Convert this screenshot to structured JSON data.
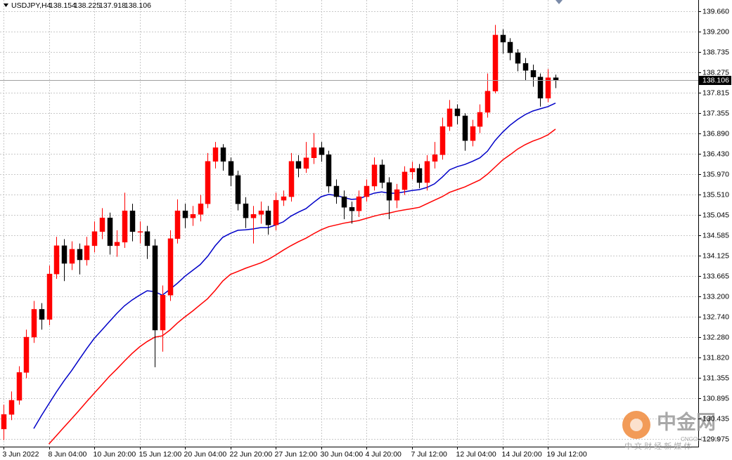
{
  "chart_data": {
    "type": "candlestick",
    "symbol": "USDJPY,H4",
    "current_price": 138.106,
    "grid": true,
    "up_color": "#ff0000",
    "down_color": "#000000",
    "ylim": [
      129.816,
      139.914
    ],
    "yticks": [
      {
        "value": 139.66,
        "label": "139.660"
      },
      {
        "value": 139.2,
        "label": "139.200"
      },
      138.735,
      138.275,
      137.815,
      137.355,
      {
        "value": 136.89,
        "label": "136.890"
      },
      {
        "value": 136.43,
        "label": "136.430"
      },
      {
        "value": 135.97,
        "label": "135.970"
      },
      {
        "value": 135.51,
        "label": "135.510"
      },
      135.045,
      134.585,
      134.125,
      133.665,
      {
        "value": 133.2,
        "label": "133.200"
      },
      {
        "value": 132.74,
        "label": "132.740"
      },
      {
        "value": 132.28,
        "label": "132.280"
      },
      {
        "value": 131.82,
        "label": "131.820"
      },
      131.355,
      130.895,
      130.435,
      129.975
    ],
    "categories": [
      "3 Jun 2022",
      null,
      null,
      null,
      null,
      null,
      "8 Jun 04:00",
      null,
      null,
      null,
      null,
      null,
      "10 Jun 20:00",
      null,
      null,
      null,
      null,
      null,
      "15 Jun 12:00",
      null,
      null,
      null,
      null,
      null,
      "20 Jun 04:00",
      null,
      null,
      null,
      null,
      null,
      "22 Jun 20:00",
      null,
      null,
      null,
      null,
      null,
      "27 Jun 12:00",
      null,
      null,
      null,
      null,
      null,
      "30 Jun 04:00",
      null,
      null,
      null,
      null,
      null,
      "4 Jul 20:00",
      null,
      null,
      null,
      null,
      null,
      "7 Jul 12:00",
      null,
      null,
      null,
      null,
      null,
      "12 Jul 04:00",
      null,
      null,
      null,
      null,
      null,
      "14 Jul 20:00",
      null,
      null,
      null,
      null,
      null,
      "19 Jul 12:00",
      null
    ],
    "open": [
      130.2,
      130.53,
      130.85,
      131.48,
      132.28,
      132.91,
      132.68,
      133.71,
      134.35,
      133.95,
      134.27,
      134.03,
      134.35,
      134.67,
      134.98,
      134.35,
      134.43,
      135.14,
      134.67,
      134.67,
      134.35,
      132.44,
      133.23,
      134.51,
      135.14,
      134.98,
      135.06,
      135.3,
      136.26,
      136.57,
      136.26,
      135.94,
      135.3,
      134.98,
      135.06,
      135.14,
      134.82,
      135.38,
      135.46,
      136.26,
      136.1,
      136.34,
      136.57,
      136.41,
      135.7,
      135.46,
      135.22,
      135.14,
      135.46,
      135.7,
      136.18,
      135.78,
      135.38,
      135.62,
      136.02,
      136.1,
      135.78,
      136.26,
      136.41,
      137.05,
      137.45,
      137.29,
      136.73,
      137.05,
      137.37,
      137.85,
      139.12,
      138.96,
      138.72,
      138.48,
      138.32,
      138.17,
      137.69,
      138.154
    ],
    "high": [
      130.75,
      131.05,
      131.62,
      132.45,
      133.1,
      133.05,
      133.9,
      134.55,
      134.5,
      134.45,
      134.4,
      134.55,
      134.9,
      135.2,
      135.1,
      134.7,
      135.55,
      135.3,
      134.9,
      134.8,
      134.5,
      133.45,
      134.7,
      135.4,
      135.3,
      135.25,
      135.5,
      136.45,
      136.7,
      136.65,
      136.35,
      136.05,
      135.45,
      135.25,
      135.35,
      135.25,
      135.55,
      135.6,
      136.45,
      136.4,
      136.7,
      136.9,
      136.7,
      136.5,
      135.85,
      135.6,
      135.35,
      135.6,
      135.85,
      136.35,
      136.3,
      135.9,
      135.75,
      136.15,
      136.25,
      136.2,
      136.4,
      136.7,
      137.25,
      137.65,
      137.55,
      137.35,
      137.2,
      137.55,
      138.25,
      139.35,
      139.25,
      139.05,
      138.8,
      138.6,
      138.45,
      138.25,
      138.35,
      138.225
    ],
    "low": [
      129.95,
      130.4,
      130.75,
      131.35,
      132.15,
      132.45,
      132.55,
      133.6,
      133.55,
      133.8,
      133.7,
      133.9,
      134.2,
      134.5,
      134.15,
      134.1,
      134.3,
      134.45,
      134.4,
      134.05,
      131.6,
      131.95,
      133.1,
      134.4,
      134.75,
      134.8,
      134.9,
      135.2,
      136.1,
      136.05,
      135.7,
      135.15,
      134.75,
      134.4,
      134.85,
      134.6,
      134.7,
      135.25,
      135.35,
      135.9,
      136.0,
      136.2,
      136.25,
      135.55,
      135.3,
      134.95,
      134.85,
      135.0,
      135.35,
      135.6,
      135.65,
      134.95,
      135.2,
      135.5,
      135.85,
      135.65,
      135.6,
      136.1,
      136.3,
      136.95,
      137.1,
      136.5,
      136.6,
      136.9,
      137.25,
      137.8,
      138.7,
      138.55,
      138.3,
      138.1,
      137.95,
      137.5,
      137.6,
      137.918
    ],
    "close": [
      130.53,
      130.85,
      131.48,
      132.28,
      132.91,
      132.68,
      133.71,
      134.35,
      133.95,
      134.27,
      134.03,
      134.35,
      134.67,
      134.98,
      134.35,
      134.43,
      135.14,
      134.67,
      134.67,
      134.35,
      132.44,
      133.23,
      134.51,
      135.14,
      134.98,
      135.06,
      135.3,
      136.26,
      136.57,
      136.26,
      135.94,
      135.3,
      134.98,
      135.06,
      135.14,
      134.82,
      135.38,
      135.46,
      136.26,
      136.1,
      136.34,
      136.57,
      136.41,
      135.7,
      135.46,
      135.22,
      135.14,
      135.46,
      135.7,
      136.18,
      135.78,
      135.38,
      135.62,
      136.02,
      136.1,
      135.78,
      136.26,
      136.41,
      137.05,
      137.45,
      137.29,
      136.73,
      137.05,
      137.37,
      137.85,
      139.12,
      138.96,
      138.72,
      138.48,
      138.32,
      138.17,
      137.69,
      138.154,
      138.106
    ],
    "series": [
      {
        "color": "#0000c8",
        "values": [
          null,
          null,
          null,
          null,
          130.21,
          130.5,
          130.77,
          131.04,
          131.29,
          131.52,
          131.77,
          132.02,
          132.25,
          132.44,
          132.63,
          132.82,
          132.99,
          133.12,
          133.23,
          133.33,
          133.31,
          133.23,
          133.36,
          133.5,
          133.66,
          133.79,
          133.92,
          134.11,
          134.35,
          134.54,
          134.63,
          134.7,
          134.71,
          134.73,
          134.76,
          134.76,
          134.82,
          134.89,
          135.02,
          135.11,
          135.19,
          135.33,
          135.46,
          135.51,
          135.49,
          135.44,
          135.4,
          135.41,
          135.48,
          135.54,
          135.57,
          135.54,
          135.54,
          135.57,
          135.6,
          135.62,
          135.67,
          135.75,
          135.9,
          136.07,
          136.14,
          136.19,
          136.26,
          136.34,
          136.49,
          136.73,
          136.92,
          137.08,
          137.21,
          137.32,
          137.4,
          137.45,
          137.5,
          137.58
        ]
      },
      {
        "color": "#ff0000",
        "values": [
          null,
          null,
          null,
          null,
          null,
          null,
          129.86,
          130.05,
          130.24,
          130.43,
          130.62,
          130.82,
          131.01,
          131.2,
          131.39,
          131.56,
          131.74,
          131.91,
          132.06,
          132.18,
          132.28,
          132.31,
          132.44,
          132.6,
          132.74,
          132.87,
          133.01,
          133.15,
          133.34,
          133.55,
          133.7,
          133.77,
          133.84,
          133.9,
          133.96,
          134.04,
          134.14,
          134.25,
          134.35,
          134.44,
          134.52,
          134.62,
          134.71,
          134.78,
          134.82,
          134.86,
          134.89,
          134.92,
          134.97,
          135.02,
          135.06,
          135.09,
          135.13,
          135.16,
          135.19,
          135.22,
          135.3,
          135.38,
          135.46,
          135.56,
          135.62,
          135.68,
          135.76,
          135.84,
          135.97,
          136.13,
          136.29,
          136.41,
          136.54,
          136.64,
          136.72,
          136.78,
          136.86,
          136.99
        ]
      }
    ]
  },
  "watermark": {
    "brand": "中金网",
    "site": "CNGOLD.COM",
    "slogan": "中 文 财 经 新 媒 体"
  }
}
